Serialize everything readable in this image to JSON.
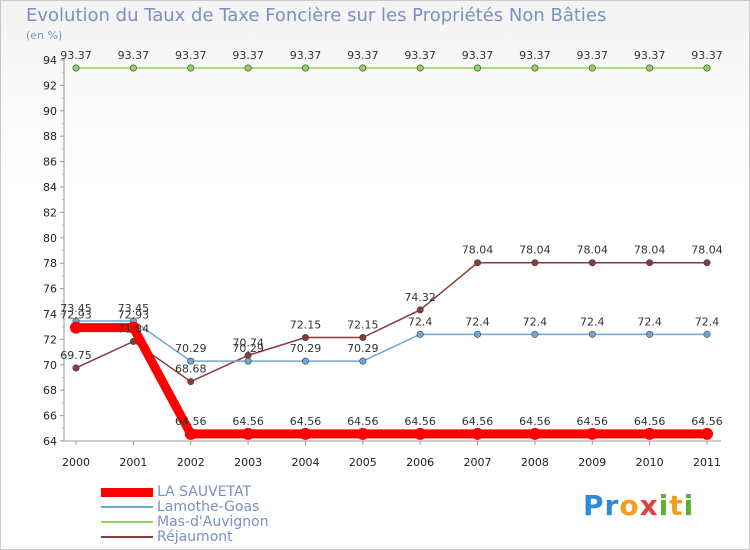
{
  "chart_data": {
    "type": "line",
    "title": "Evolution du Taux de Taxe Foncière sur les Propriétés Non Bâties",
    "ylabel": "(en %)",
    "x": [
      "2000",
      "2001",
      "2002",
      "2003",
      "2004",
      "2005",
      "2006",
      "2007",
      "2008",
      "2009",
      "2010",
      "2011"
    ],
    "ylim": [
      64,
      94
    ],
    "yticks": [
      64,
      66,
      68,
      70,
      72,
      74,
      76,
      78,
      80,
      82,
      84,
      86,
      88,
      90,
      92,
      94
    ],
    "grid": false,
    "legend_position": "bottom-left",
    "series": [
      {
        "name": "Mas-d'Auvignon",
        "color": "#8dd35f",
        "values": [
          93.37,
          93.37,
          93.37,
          93.37,
          93.37,
          93.37,
          93.37,
          93.37,
          93.37,
          93.37,
          93.37,
          93.37
        ],
        "labels": [
          "93.37",
          "93.37",
          "93.37",
          "93.37",
          "93.37",
          "93.37",
          "93.37",
          "93.37",
          "93.37",
          "93.37",
          "93.37",
          "93.37"
        ]
      },
      {
        "name": "Réjaumont",
        "color": "#8b3a3a",
        "values": [
          69.75,
          71.84,
          68.68,
          70.74,
          72.15,
          72.15,
          74.32,
          78.04,
          78.04,
          78.04,
          78.04,
          78.04
        ],
        "labels": [
          "69.75",
          "71.84",
          "68.68",
          "70.74",
          "72.15",
          "72.15",
          "74.32",
          "78.04",
          "78.04",
          "78.04",
          "78.04",
          "78.04"
        ]
      },
      {
        "name": "Lamothe-Goas",
        "color": "#6fa8d6",
        "values": [
          73.45,
          73.45,
          70.29,
          70.29,
          70.29,
          70.29,
          72.4,
          72.4,
          72.4,
          72.4,
          72.4,
          72.4
        ],
        "labels": [
          "73.45",
          "73.45",
          "70.29",
          "70.29",
          "70.29",
          "70.29",
          "72.4",
          "72.4",
          "72.4",
          "72.4",
          "72.4",
          "72.4"
        ]
      },
      {
        "name": "LA SAUVETAT",
        "color": "#ff0000",
        "values": [
          72.93,
          72.93,
          64.56,
          64.56,
          64.56,
          64.56,
          64.56,
          64.56,
          64.56,
          64.56,
          64.56,
          64.56
        ],
        "labels": [
          "72.93",
          "72.93",
          "64.56",
          "64.56",
          "64.56",
          "64.56",
          "64.56",
          "64.56",
          "64.56",
          "64.56",
          "64.56",
          "64.56"
        ]
      }
    ],
    "legend_order": [
      "LA SAUVETAT",
      "Lamothe-Goas",
      "Mas-d'Auvignon",
      "Réjaumont"
    ],
    "logo": "Proxiti"
  }
}
